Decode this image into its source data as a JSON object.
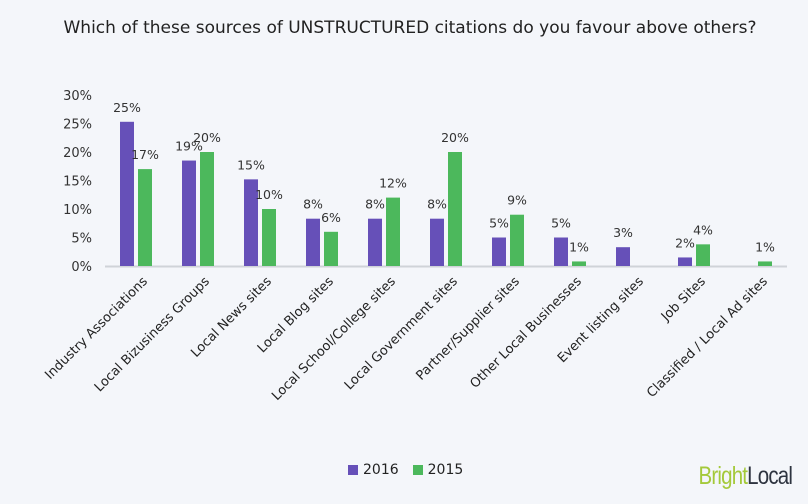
{
  "chart_data": {
    "type": "bar",
    "title": "Which of these sources of UNSTRUCTURED citations do you favour above others?",
    "categories": [
      "Industry Associations",
      "Local Bizusiness Groups",
      "Local News sites",
      "Local Blog sites",
      "Local School/College sites",
      "Local Government sites",
      "Partner/Supplier sites",
      "Other Local Businesses",
      "Event listing sites",
      "Job Sites",
      "Classified / Local Ad sites"
    ],
    "series": [
      {
        "name": "2016",
        "color": "#6650b8",
        "values": [
          25.3,
          18.5,
          15.2,
          8.3,
          8.3,
          8.3,
          5,
          5,
          3.3,
          1.5,
          null
        ],
        "labels": [
          "25%",
          "19%",
          "15%",
          "8%",
          "8%",
          "8%",
          "5%",
          "5%",
          "3%",
          "2%",
          ""
        ]
      },
      {
        "name": "2015",
        "color": "#4cb85c",
        "values": [
          17,
          20,
          10,
          6,
          12,
          20,
          9,
          0.8,
          null,
          3.8,
          0.8
        ],
        "labels": [
          "17%",
          "20%",
          "10%",
          "6%",
          "12%",
          "20%",
          "9%",
          "1%",
          "",
          "4%",
          "1%"
        ]
      }
    ],
    "ylim": [
      0,
      30
    ],
    "yticks": [
      "0%",
      "5%",
      "10%",
      "15%",
      "20%",
      "25%",
      "30%"
    ],
    "grid": false,
    "legend": "bottom"
  },
  "logo": {
    "part1": "Bright",
    "part2": "Local",
    "color1": "#a4c93a",
    "color2": "#2e3440"
  }
}
